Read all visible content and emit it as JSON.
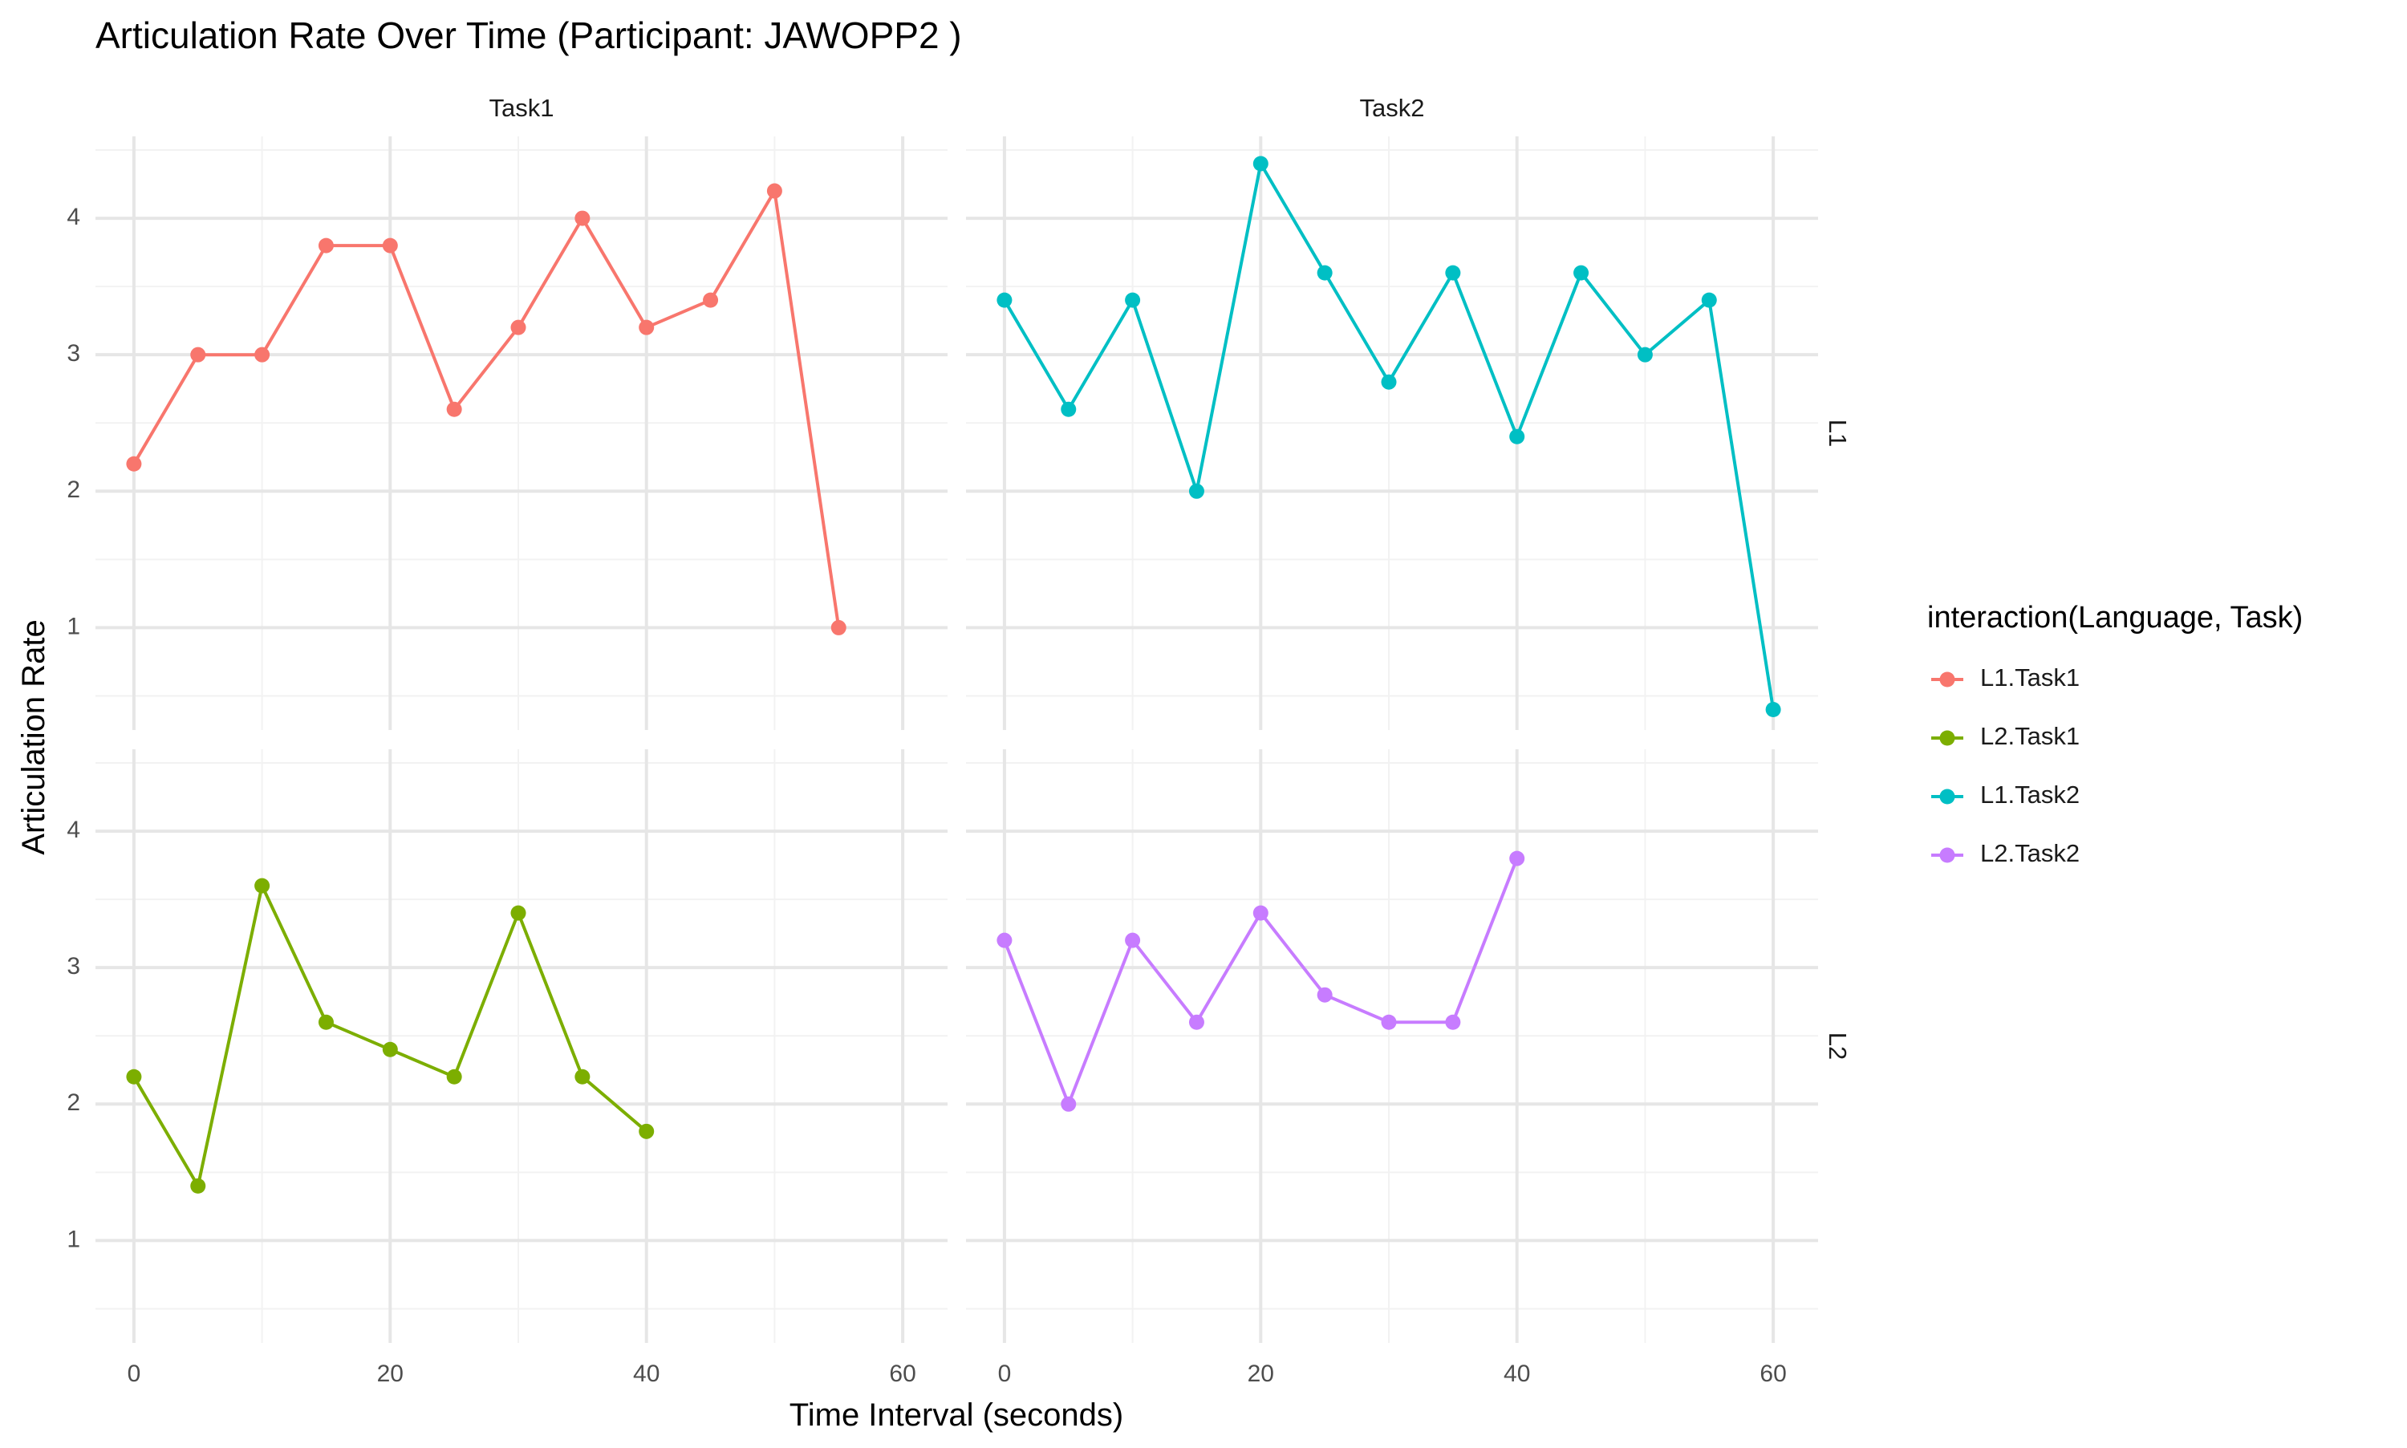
{
  "chart_data": {
    "type": "line",
    "title": "Articulation Rate Over Time (Participant: JAWOPP2 )",
    "xlabel": "Time Interval (seconds)",
    "ylabel": "Articulation Rate",
    "facet_columns": [
      "Task1",
      "Task2"
    ],
    "facet_rows": [
      "L1",
      "L2"
    ],
    "xlim": [
      -3,
      63.5
    ],
    "ylim": [
      0.25,
      4.6
    ],
    "x_ticks": [
      0,
      20,
      40,
      60
    ],
    "x_tick_labels": [
      "0",
      "20",
      "40",
      "60"
    ],
    "y_ticks": [
      1,
      2,
      3,
      4
    ],
    "y_tick_labels": [
      "1",
      "2",
      "3",
      "4"
    ],
    "grid": true,
    "legend": {
      "title": "interaction(Language, Task)",
      "position": "right",
      "entries": [
        "L1.Task1",
        "L2.Task1",
        "L1.Task2",
        "L2.Task2"
      ]
    },
    "series": [
      {
        "name": "L1.Task1",
        "language": "L1",
        "task": "Task1",
        "color": "#F8766D",
        "x": [
          0,
          5,
          10,
          15,
          20,
          25,
          30,
          35,
          40,
          45,
          50,
          55
        ],
        "values": [
          2.2,
          3.0,
          3.0,
          3.8,
          3.8,
          2.6,
          3.2,
          4.0,
          3.2,
          3.4,
          4.2,
          1.0
        ]
      },
      {
        "name": "L2.Task1",
        "language": "L2",
        "task": "Task1",
        "color": "#7CAE00",
        "x": [
          0,
          5,
          10,
          15,
          20,
          25,
          30,
          35,
          40
        ],
        "values": [
          2.2,
          1.4,
          3.6,
          2.6,
          2.4,
          2.2,
          3.4,
          2.2,
          1.8
        ]
      },
      {
        "name": "L1.Task2",
        "language": "L1",
        "task": "Task2",
        "color": "#00BFC4",
        "x": [
          0,
          5,
          10,
          15,
          20,
          25,
          30,
          35,
          40,
          45,
          50,
          55,
          60
        ],
        "values": [
          3.4,
          2.6,
          3.4,
          2.0,
          4.4,
          3.6,
          2.8,
          3.6,
          2.4,
          3.6,
          3.0,
          3.4,
          0.4
        ]
      },
      {
        "name": "L2.Task2",
        "language": "L2",
        "task": "Task2",
        "color": "#C77CFF",
        "x": [
          0,
          5,
          10,
          15,
          20,
          25,
          30,
          35,
          40
        ],
        "values": [
          3.2,
          2.0,
          3.2,
          2.6,
          3.4,
          2.8,
          2.6,
          2.6,
          3.8
        ]
      }
    ]
  }
}
